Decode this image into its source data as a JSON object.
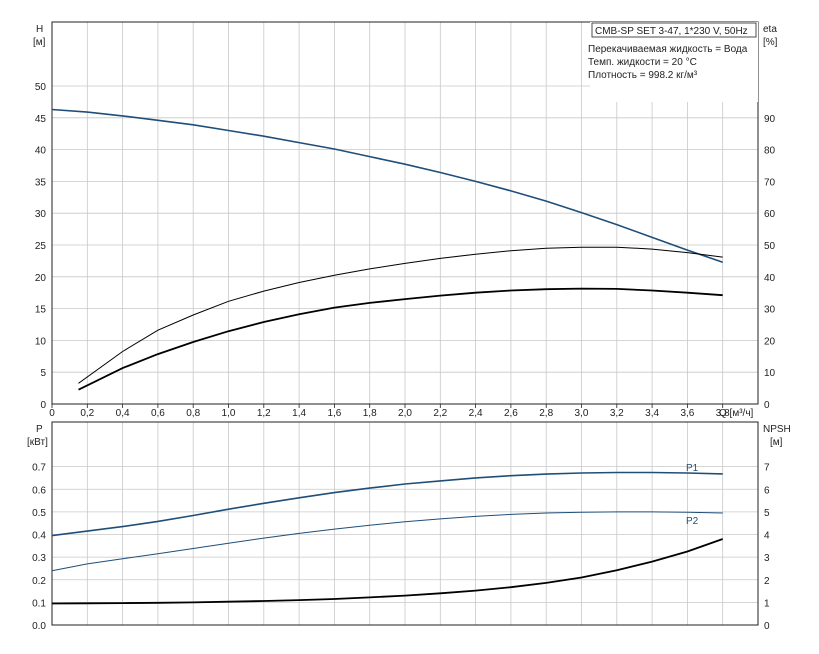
{
  "colors": {
    "grid": "#c8c8c8",
    "axis": "#222222",
    "blue": "#1f4e79",
    "black": "#000000"
  },
  "info": {
    "title": "CMB-SP SET 3-47, 1*230 V, 50Hz",
    "lines": [
      "Перекачиваемая жидкость = Вода",
      "Темп. жидкости = 20 °C",
      "Плотность = 998.2 кг/м³"
    ]
  },
  "chart_data": [
    {
      "type": "line",
      "xlabel": "Q [м³/ч]",
      "y_left_label": "H",
      "y_left_unit": "[м]",
      "y_right_label": "eta",
      "y_right_unit": "[%]",
      "xlim": [
        0,
        4.0
      ],
      "ylim_left": [
        0,
        50
      ],
      "ylim_right": [
        0,
        100
      ],
      "x_ticks": [
        "0",
        "0,2",
        "0,4",
        "0,6",
        "0,8",
        "1,0",
        "1,2",
        "1,4",
        "1,6",
        "1,8",
        "2,0",
        "2,2",
        "2,4",
        "2,6",
        "2,8",
        "3,0",
        "3,2",
        "3,4",
        "3,6",
        "3,8"
      ],
      "y_left_ticks": [
        "0",
        "5",
        "10",
        "15",
        "20",
        "25",
        "30",
        "35",
        "40",
        "45",
        "50"
      ],
      "y_right_ticks": [
        "0",
        "10",
        "20",
        "30",
        "40",
        "50",
        "60",
        "70",
        "80",
        "90"
      ],
      "series": [
        {
          "id": "H",
          "axis": "left",
          "x": [
            0,
            0.2,
            0.4,
            0.6,
            0.8,
            1.0,
            1.2,
            1.4,
            1.6,
            1.8,
            2.0,
            2.2,
            2.4,
            2.6,
            2.8,
            3.0,
            3.2,
            3.4,
            3.6,
            3.8
          ],
          "y": [
            46.3,
            45.9,
            45.3,
            44.6,
            43.9,
            43.0,
            42.1,
            41.1,
            40.1,
            38.9,
            37.7,
            36.4,
            35.0,
            33.5,
            31.9,
            30.1,
            28.2,
            26.2,
            24.2,
            22.3
          ]
        },
        {
          "id": "eta-a",
          "axis": "right",
          "x": [
            0.15,
            0.4,
            0.6,
            0.8,
            1.0,
            1.2,
            1.4,
            1.6,
            1.8,
            2.0,
            2.2,
            2.4,
            2.6,
            2.8,
            3.0,
            3.2,
            3.4,
            3.6,
            3.8
          ],
          "y": [
            6.5,
            16.5,
            23.2,
            28.0,
            32.3,
            35.5,
            38.2,
            40.5,
            42.5,
            44.2,
            45.8,
            47.1,
            48.2,
            49.0,
            49.3,
            49.3,
            48.7,
            47.6,
            46.2
          ]
        },
        {
          "id": "eta-b",
          "axis": "right",
          "x": [
            0.15,
            0.4,
            0.6,
            0.8,
            1.0,
            1.2,
            1.4,
            1.6,
            1.8,
            2.0,
            2.2,
            2.4,
            2.6,
            2.8,
            3.0,
            3.2,
            3.4,
            3.6,
            3.8
          ],
          "y": [
            4.5,
            11.3,
            15.7,
            19.5,
            22.9,
            25.8,
            28.2,
            30.3,
            31.8,
            33.0,
            34.1,
            35.0,
            35.7,
            36.1,
            36.3,
            36.2,
            35.7,
            35.0,
            34.2
          ]
        }
      ]
    },
    {
      "type": "line",
      "y_left_label": "P",
      "y_left_unit": "[кВт]",
      "y_right_label": "NPSH",
      "y_right_unit": "[м]",
      "xlim": [
        0,
        4.0
      ],
      "ylim_left": [
        0,
        0.8
      ],
      "ylim_right": [
        0,
        8
      ],
      "y_left_ticks": [
        "0.0",
        "0.1",
        "0.2",
        "0.3",
        "0.4",
        "0.5",
        "0.6",
        "0.7"
      ],
      "y_right_ticks": [
        "0",
        "1",
        "2",
        "3",
        "4",
        "5",
        "6",
        "7"
      ],
      "series": [
        {
          "id": "P1",
          "name": "P1",
          "axis": "left",
          "x": [
            0,
            0.2,
            0.4,
            0.6,
            0.8,
            1.0,
            1.2,
            1.4,
            1.6,
            1.8,
            2.0,
            2.2,
            2.4,
            2.6,
            2.8,
            3.0,
            3.2,
            3.4,
            3.6,
            3.8
          ],
          "y": [
            0.395,
            0.415,
            0.435,
            0.458,
            0.484,
            0.512,
            0.538,
            0.562,
            0.585,
            0.605,
            0.623,
            0.637,
            0.65,
            0.66,
            0.667,
            0.672,
            0.674,
            0.674,
            0.672,
            0.668
          ]
        },
        {
          "id": "P2",
          "name": "P2",
          "axis": "left",
          "x": [
            0,
            0.2,
            0.4,
            0.6,
            0.8,
            1.0,
            1.2,
            1.4,
            1.6,
            1.8,
            2.0,
            2.2,
            2.4,
            2.6,
            2.8,
            3.0,
            3.2,
            3.4,
            3.6,
            3.8
          ],
          "y": [
            0.24,
            0.27,
            0.293,
            0.315,
            0.338,
            0.361,
            0.384,
            0.405,
            0.424,
            0.441,
            0.456,
            0.469,
            0.48,
            0.489,
            0.495,
            0.498,
            0.5,
            0.5,
            0.498,
            0.495
          ]
        },
        {
          "id": "NPSH",
          "axis": "right",
          "x": [
            0,
            0.2,
            0.4,
            0.6,
            0.8,
            1.0,
            1.2,
            1.4,
            1.6,
            1.8,
            2.0,
            2.2,
            2.4,
            2.6,
            2.8,
            3.0,
            3.2,
            3.4,
            3.6,
            3.8
          ],
          "y": [
            0.95,
            0.96,
            0.97,
            0.98,
            1.0,
            1.03,
            1.06,
            1.1,
            1.15,
            1.22,
            1.3,
            1.4,
            1.52,
            1.67,
            1.86,
            2.1,
            2.42,
            2.8,
            3.25,
            3.8
          ]
        }
      ]
    }
  ]
}
